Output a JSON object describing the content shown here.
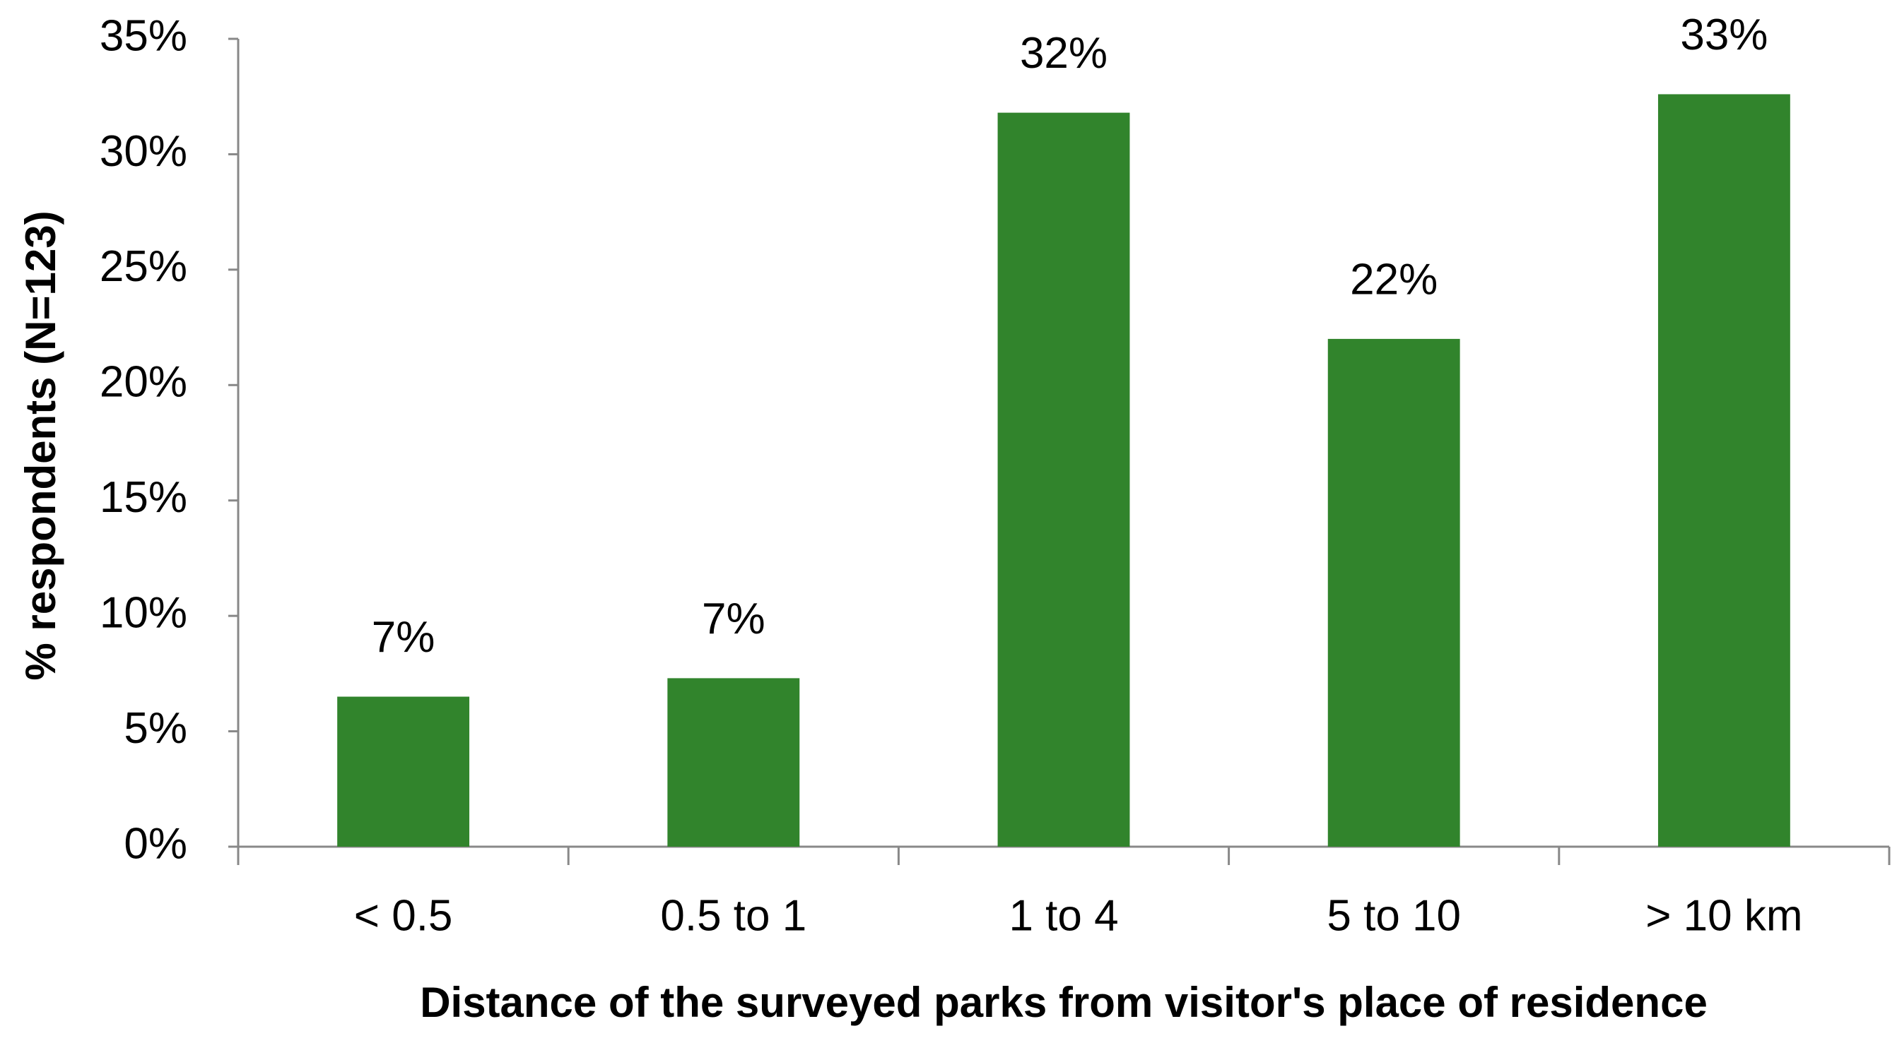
{
  "chart_data": {
    "type": "bar",
    "x_label": "Distance of the surveyed parks from visitor's place of residence",
    "y_label": "% respondents (N=123)",
    "categories": [
      "< 0.5",
      "0.5 to 1",
      "1 to 4",
      "5 to 10",
      "> 10 km"
    ],
    "values": [
      6.5,
      7.3,
      31.8,
      22.0,
      32.6
    ],
    "value_labels": [
      "7%",
      "7%",
      "32%",
      "22%",
      "33%"
    ],
    "color": "#31842c",
    "ylim": [
      0,
      35
    ],
    "yticks": [
      {
        "value": 0,
        "label": "0%"
      },
      {
        "value": 5,
        "label": "5%"
      },
      {
        "value": 10,
        "label": "10%"
      },
      {
        "value": 15,
        "label": "15%"
      },
      {
        "value": 20,
        "label": "20%"
      },
      {
        "value": 25,
        "label": "25%"
      },
      {
        "value": 30,
        "label": "30%"
      },
      {
        "value": 35,
        "label": "35%"
      }
    ],
    "grid": false
  }
}
